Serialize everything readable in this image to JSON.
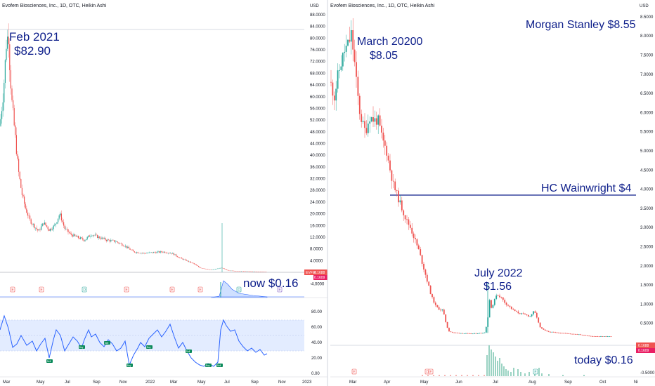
{
  "colors": {
    "up": "#26a69a",
    "down": "#ef5350",
    "annotation": "#0d1e8a",
    "rsi_line": "#2962ff",
    "rsi_band": "#e3ecff",
    "price_tag": "#ef5350",
    "grid": "#f0f3fa",
    "axis_text": "#131722"
  },
  "left_chart": {
    "title": "Evofem Biosciences, Inc., 1D, OTC, Heikin Ashi",
    "currency": "USD",
    "symbol_tag": "EVFM",
    "price_tag": "0.1688",
    "price_tag2": "0.1609",
    "annotation_peak_date": "Feb 2021",
    "annotation_peak_price": "$82.90",
    "annotation_now": "now $0.16",
    "y_ticks": [
      "88.0000",
      "84.0000",
      "80.0000",
      "76.0000",
      "72.0000",
      "68.0000",
      "64.0000",
      "60.0000",
      "56.0000",
      "52.0000",
      "48.0000",
      "44.0000",
      "40.0000",
      "36.0000",
      "32.0000",
      "28.0000",
      "24.0000",
      "20.0000",
      "16.0000",
      "12.0000",
      "8.0000",
      "4.0000",
      "-4.0000"
    ],
    "x_ticks": [
      "Mar",
      "May",
      "Jul",
      "Sep",
      "Nov",
      "2022",
      "Mar",
      "May",
      "Jul",
      "Sep",
      "Nov",
      "2023"
    ],
    "rsi_ticks": [
      "80.00",
      "60.00",
      "40.00",
      "20.00",
      "0.00"
    ],
    "rsi_badges": [
      "Sell",
      "Buy",
      "Sell",
      "Buy",
      "Buy",
      "Sell",
      "Buy",
      "Sell"
    ],
    "event_markers": [
      "E",
      "E",
      "D",
      "E",
      "E",
      "E",
      "D",
      "E",
      "$"
    ]
  },
  "right_chart": {
    "title": "Evofem Biosciences, Inc., 1D, OTC, Heikin Ashi",
    "currency": "USD",
    "price_tag": "0.1688",
    "price_tag2": "0.1609",
    "annotation_ms": "Morgan Stanley $8.55",
    "annotation_march_date": "March 20200",
    "annotation_march_price": "$8.05",
    "annotation_hc": "HC Wainwright $4",
    "annotation_july_date": "July 2022",
    "annotation_july_price": "$1.56",
    "annotation_today": "today $0.16",
    "y_ticks": [
      "8.5000",
      "8.0000",
      "7.5000",
      "7.0000",
      "6.5000",
      "6.0000",
      "5.5000",
      "5.0000",
      "4.5000",
      "4.0000",
      "3.5000",
      "3.0000",
      "2.5000",
      "2.0000",
      "1.5000",
      "1.0000",
      "0.5000",
      "-0.5000"
    ],
    "x_ticks": [
      "Mar",
      "Apr",
      "May",
      "Jun",
      "Jul",
      "Aug",
      "Sep",
      "Oct",
      "Ni"
    ],
    "event_markers": [
      "E",
      "D",
      "E",
      "E"
    ]
  },
  "chart_data": [
    {
      "type": "candlestick",
      "title": "Evofem Biosciences, Inc., 1D, OTC, Heikin Ashi",
      "ylabel": "USD",
      "ylim": [
        -6,
        90
      ],
      "x": [
        "Feb 2021",
        "Mar 2021",
        "Apr 2021",
        "May 2021",
        "Jun 2021",
        "Jul 2021",
        "Aug 2021",
        "Sep 2021",
        "Oct 2021",
        "Nov 2021",
        "Dec 2021",
        "Jan 2022",
        "Feb 2022",
        "Mar 2022",
        "Apr 2022",
        "May 2022",
        "Jun 2022",
        "Jul 2022",
        "Aug 2022",
        "Sep 2022"
      ],
      "close": [
        78,
        28,
        17,
        12,
        15,
        12,
        11,
        11,
        10,
        8,
        7,
        6.5,
        6,
        7,
        5,
        2,
        1.5,
        1.56,
        0.8,
        0.16
      ],
      "annotations": [
        {
          "label": "Feb 2021 $82.90"
        },
        {
          "label": "now $0.16"
        }
      ],
      "indicator": {
        "name": "RSI",
        "ylim": [
          0,
          90
        ],
        "band": [
          30,
          70
        ]
      }
    },
    {
      "type": "candlestick",
      "title": "Evofem Biosciences, Inc., 1D, OTC, Heikin Ashi",
      "ylabel": "USD",
      "ylim": [
        -0.5,
        8.6
      ],
      "x": [
        "Mar",
        "Apr",
        "May",
        "Jun",
        "Jul",
        "Aug",
        "Sep",
        "Oct"
      ],
      "close": [
        7.5,
        4.2,
        3.0,
        0.5,
        1.3,
        0.9,
        0.35,
        0.16
      ],
      "annotations": [
        {
          "label": "Morgan Stanley $8.55"
        },
        {
          "label": "March 20200 $8.05"
        },
        {
          "label": "HC Wainwright $4",
          "value": 4.0
        },
        {
          "label": "July 2022 $1.56"
        },
        {
          "label": "today $0.16"
        }
      ]
    }
  ]
}
